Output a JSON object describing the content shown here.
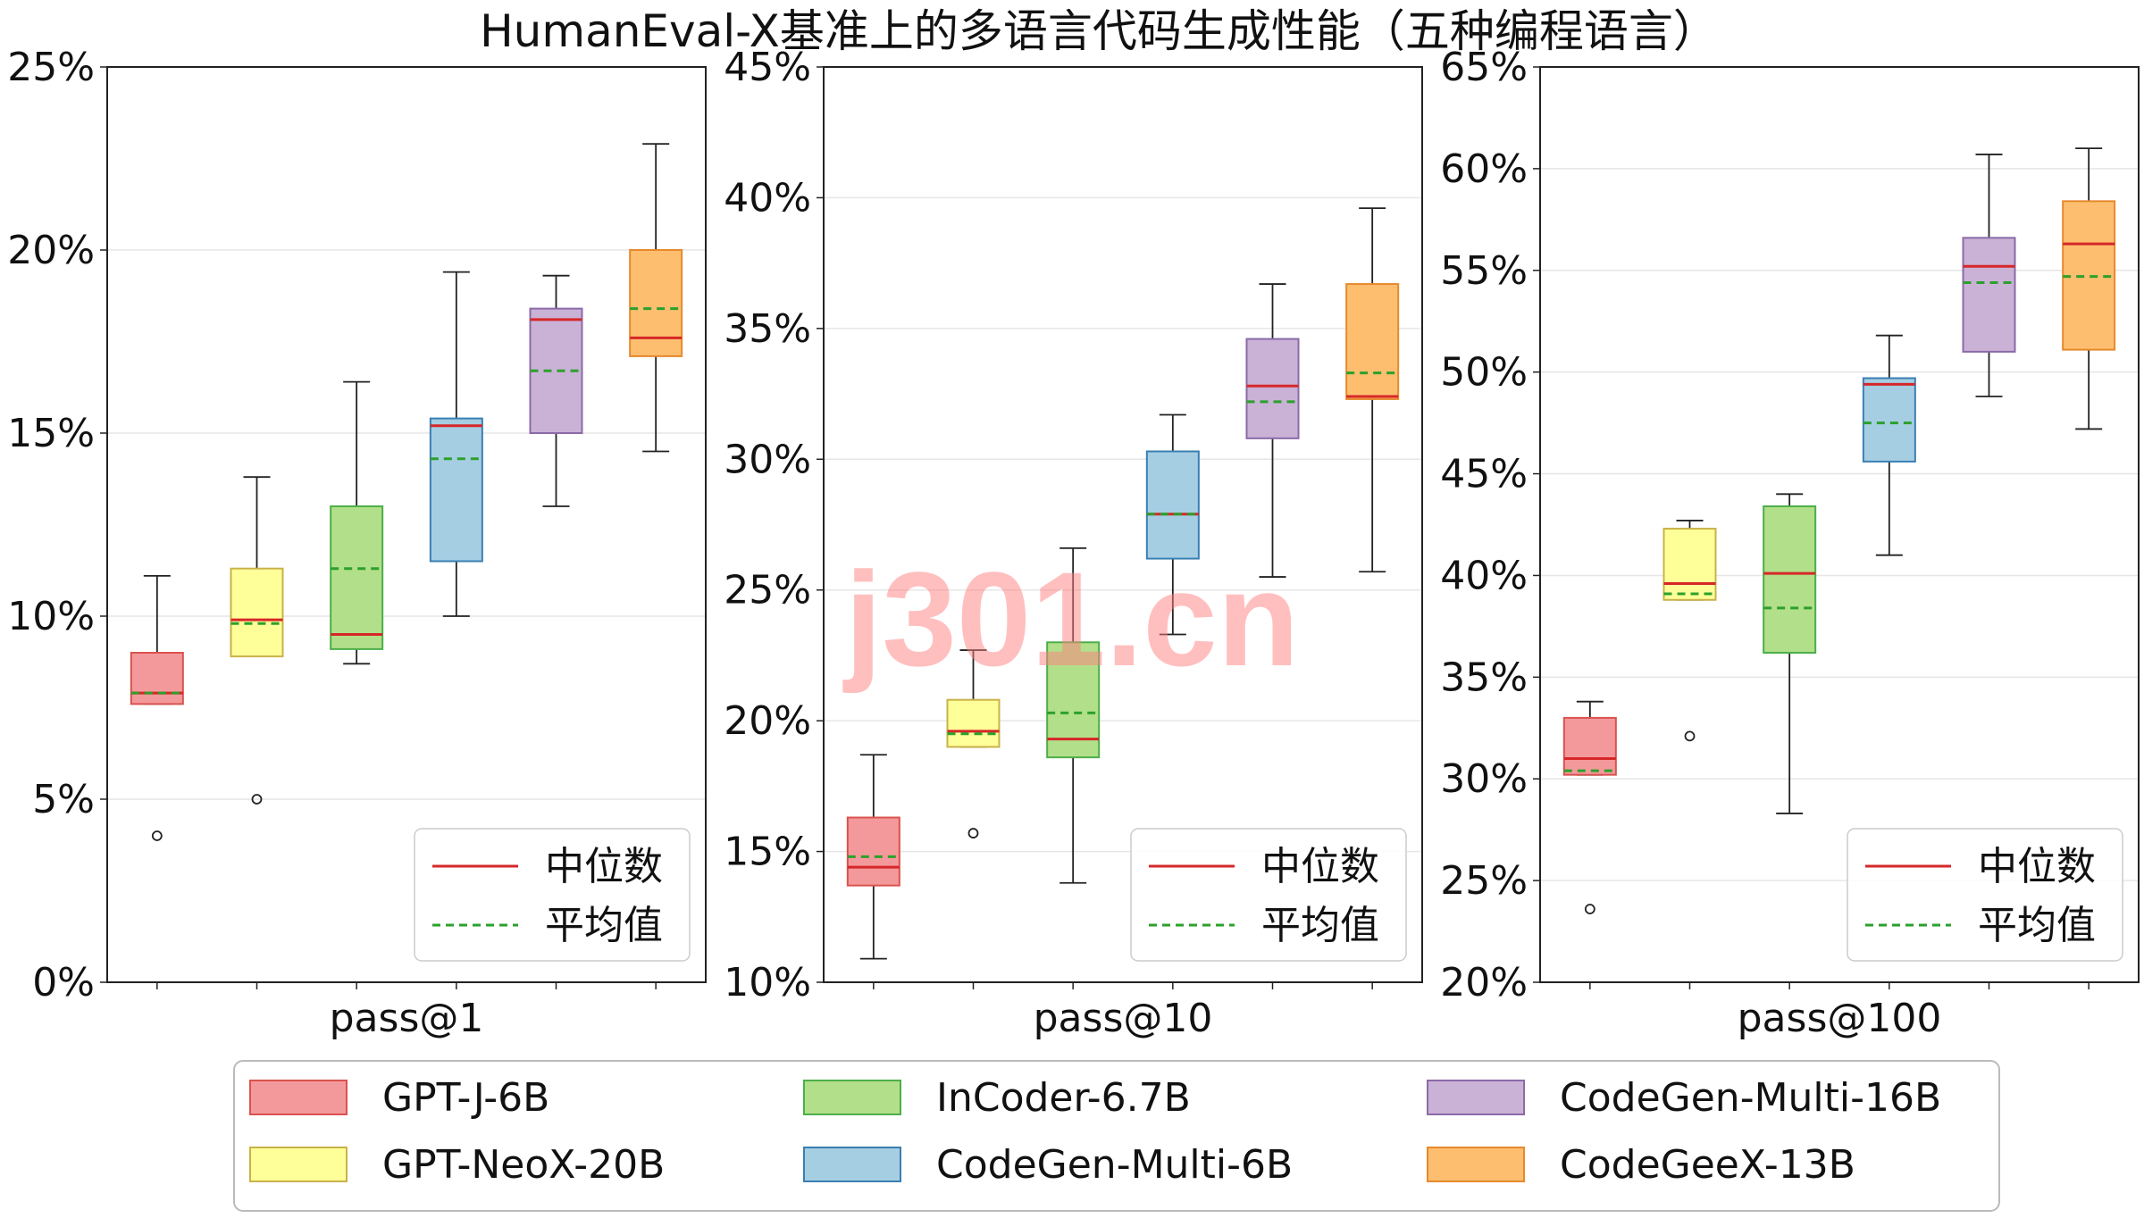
{
  "title": "HumanEval-X基准上的多语言代码生成性能（五种编程语言）",
  "watermark": "j301.cn",
  "stat_legend": {
    "median_label": "中位数",
    "mean_label": "平均值",
    "median_color": "#d62728",
    "mean_color": "#2ca02c"
  },
  "chart_data": {
    "type": "box",
    "series_colors": {
      "GPT-J-6B": {
        "fill": "#f4999b",
        "edge": "#d9534f"
      },
      "GPT-NeoX-20B": {
        "fill": "#ffff99",
        "edge": "#c9b24a"
      },
      "InCoder-6.7B": {
        "fill": "#b2df8a",
        "edge": "#4daf4a"
      },
      "CodeGen-Multi-6B": {
        "fill": "#a6cee3",
        "edge": "#3a7fb2"
      },
      "CodeGen-Multi-16B": {
        "fill": "#cab2d6",
        "edge": "#8b6aa8"
      },
      "CodeGeeX-13B": {
        "fill": "#fdbf6f",
        "edge": "#e6892e"
      }
    },
    "models": [
      "GPT-J-6B",
      "GPT-NeoX-20B",
      "InCoder-6.7B",
      "CodeGen-Multi-6B",
      "CodeGen-Multi-16B",
      "CodeGeeX-13B"
    ],
    "panels": [
      {
        "xlabel": "pass@1",
        "ylim": [
          0,
          25
        ],
        "yticks": [
          0,
          5,
          10,
          15,
          20,
          25
        ],
        "ytick_labels": [
          "0%",
          "5%",
          "10%",
          "15%",
          "20%",
          "25%"
        ],
        "boxes": [
          {
            "model": "GPT-J-6B",
            "whislo": 7.6,
            "q1": 7.6,
            "median": 7.9,
            "mean": 7.9,
            "q3": 9.0,
            "whishi": 11.1,
            "fliers": [
              4.0
            ]
          },
          {
            "model": "GPT-NeoX-20B",
            "whislo": 8.9,
            "q1": 8.9,
            "median": 9.9,
            "mean": 9.8,
            "q3": 11.3,
            "whishi": 13.8,
            "fliers": [
              5.0
            ]
          },
          {
            "model": "InCoder-6.7B",
            "whislo": 8.7,
            "q1": 9.1,
            "median": 9.5,
            "mean": 11.3,
            "q3": 13.0,
            "whishi": 16.4,
            "fliers": []
          },
          {
            "model": "CodeGen-Multi-6B",
            "whislo": 10.0,
            "q1": 11.5,
            "median": 15.2,
            "mean": 14.3,
            "q3": 15.4,
            "whishi": 19.4,
            "fliers": []
          },
          {
            "model": "CodeGen-Multi-16B",
            "whislo": 13.0,
            "q1": 15.0,
            "median": 18.1,
            "mean": 16.7,
            "q3": 18.4,
            "whishi": 19.3,
            "fliers": []
          },
          {
            "model": "CodeGeeX-13B",
            "whislo": 14.5,
            "q1": 17.1,
            "median": 17.6,
            "mean": 18.4,
            "q3": 20.0,
            "whishi": 22.9,
            "fliers": []
          }
        ]
      },
      {
        "xlabel": "pass@10",
        "ylim": [
          10,
          45
        ],
        "yticks": [
          10,
          15,
          20,
          25,
          30,
          35,
          40,
          45
        ],
        "ytick_labels": [
          "10%",
          "15%",
          "20%",
          "25%",
          "30%",
          "35%",
          "40%",
          "45%"
        ],
        "boxes": [
          {
            "model": "GPT-J-6B",
            "whislo": 10.9,
            "q1": 13.7,
            "median": 14.4,
            "mean": 14.8,
            "q3": 16.3,
            "whishi": 18.7,
            "fliers": []
          },
          {
            "model": "GPT-NeoX-20B",
            "whislo": 19.0,
            "q1": 19.0,
            "median": 19.6,
            "mean": 19.5,
            "q3": 20.8,
            "whishi": 22.7,
            "fliers": [
              15.7
            ]
          },
          {
            "model": "InCoder-6.7B",
            "whislo": 13.8,
            "q1": 18.6,
            "median": 19.3,
            "mean": 20.3,
            "q3": 23.0,
            "whishi": 26.6,
            "fliers": []
          },
          {
            "model": "CodeGen-Multi-6B",
            "whislo": 23.3,
            "q1": 26.2,
            "median": 27.9,
            "mean": 27.9,
            "q3": 30.3,
            "whishi": 31.7,
            "fliers": []
          },
          {
            "model": "CodeGen-Multi-16B",
            "whislo": 25.5,
            "q1": 30.8,
            "median": 32.8,
            "mean": 32.2,
            "q3": 34.6,
            "whishi": 36.7,
            "fliers": []
          },
          {
            "model": "CodeGeeX-13B",
            "whislo": 25.7,
            "q1": 32.3,
            "median": 32.4,
            "mean": 33.3,
            "q3": 36.7,
            "whishi": 39.6,
            "fliers": []
          }
        ]
      },
      {
        "xlabel": "pass@100",
        "ylim": [
          20,
          65
        ],
        "yticks": [
          20,
          25,
          30,
          35,
          40,
          45,
          50,
          55,
          60,
          65
        ],
        "ytick_labels": [
          "20%",
          "25%",
          "30%",
          "35%",
          "40%",
          "45%",
          "50%",
          "55%",
          "60%",
          "65%"
        ],
        "boxes": [
          {
            "model": "GPT-J-6B",
            "whislo": 30.2,
            "q1": 30.2,
            "median": 31.0,
            "mean": 30.4,
            "q3": 33.0,
            "whishi": 33.8,
            "fliers": [
              23.6
            ]
          },
          {
            "model": "GPT-NeoX-20B",
            "whislo": 38.8,
            "q1": 38.8,
            "median": 39.6,
            "mean": 39.1,
            "q3": 42.3,
            "whishi": 42.7,
            "fliers": [
              32.1
            ]
          },
          {
            "model": "InCoder-6.7B",
            "whislo": 28.3,
            "q1": 36.2,
            "median": 40.1,
            "mean": 38.4,
            "q3": 43.4,
            "whishi": 44.0,
            "fliers": []
          },
          {
            "model": "CodeGen-Multi-6B",
            "whislo": 41.0,
            "q1": 45.6,
            "median": 49.4,
            "mean": 47.5,
            "q3": 49.7,
            "whishi": 51.8,
            "fliers": []
          },
          {
            "model": "CodeGen-Multi-16B",
            "whislo": 48.8,
            "q1": 51.0,
            "median": 55.2,
            "mean": 54.4,
            "q3": 56.6,
            "whishi": 60.7,
            "fliers": []
          },
          {
            "model": "CodeGeeX-13B",
            "whislo": 47.2,
            "q1": 51.1,
            "median": 56.3,
            "mean": 54.7,
            "q3": 58.4,
            "whishi": 61.0,
            "fliers": []
          }
        ]
      }
    ],
    "legend": {
      "placement": "bottom-center",
      "entries": [
        "GPT-J-6B",
        "GPT-NeoX-20B",
        "InCoder-6.7B",
        "CodeGen-Multi-6B",
        "CodeGen-Multi-16B",
        "CodeGeeX-13B"
      ]
    }
  }
}
